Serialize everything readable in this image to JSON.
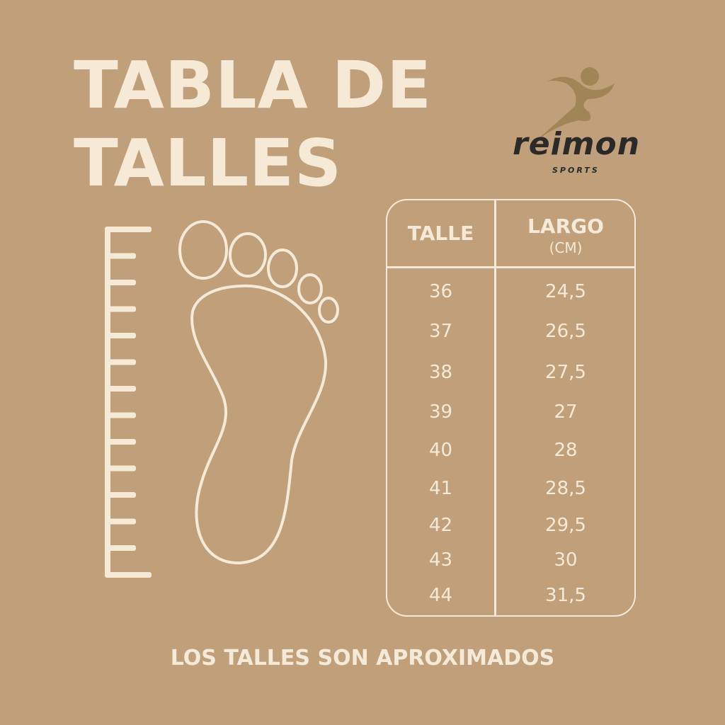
{
  "title": {
    "line1": "TABLA DE",
    "line2": "TALLES"
  },
  "logo": {
    "brand": "reimon",
    "sub": "SPORTS",
    "figure_color": "#a08657",
    "text_color": "#2b2a28"
  },
  "colors": {
    "background": "#bfa07a",
    "foreground": "#f6ead6"
  },
  "table": {
    "headers": {
      "size": "TALLE",
      "length": "LARGO",
      "unit": "(CM)"
    },
    "rows": [
      {
        "talle": "36",
        "largo": "24,5"
      },
      {
        "talle": "37",
        "largo": "26,5"
      },
      {
        "talle": "38",
        "largo": "27,5"
      },
      {
        "talle": "39",
        "largo": "27"
      },
      {
        "talle": "40",
        "largo": "28"
      },
      {
        "talle": "41",
        "largo": "28,5"
      },
      {
        "talle": "42",
        "largo": "29,5"
      },
      {
        "talle": "43",
        "largo": "30"
      },
      {
        "talle": "44",
        "largo": "31,5"
      }
    ]
  },
  "footer": "LOS TALLES SON APROXIMADOS"
}
